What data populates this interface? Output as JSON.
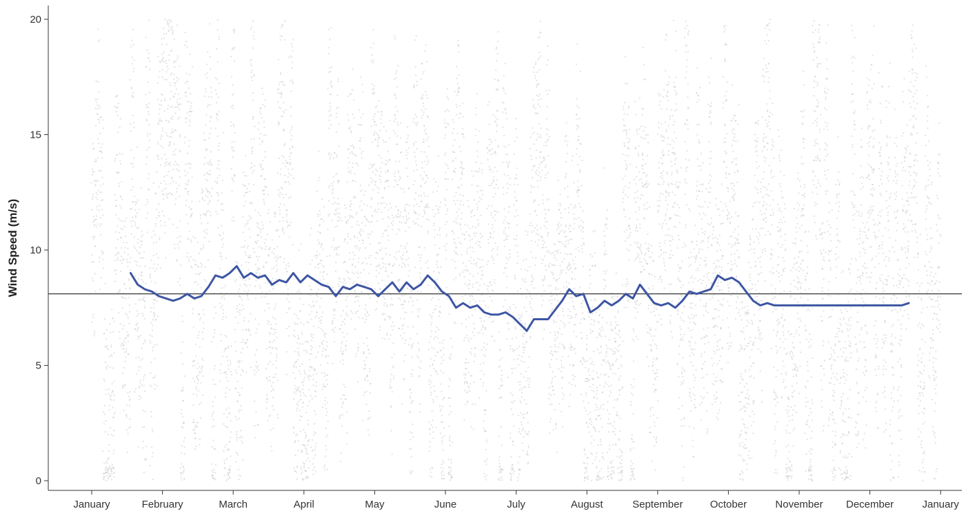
{
  "chart_data": {
    "type": "scatter",
    "title": "",
    "xlabel": "",
    "ylabel": "Wind Speed (m/s)",
    "ylim": [
      -0.8,
      20.5
    ],
    "y_ticks": [
      0,
      5,
      10,
      15,
      20
    ],
    "x_ticks": [
      "January",
      "February",
      "March",
      "April",
      "May",
      "June",
      "July",
      "August",
      "September",
      "October",
      "November",
      "December",
      "January"
    ],
    "grid": false,
    "legend": "none",
    "reference_line": {
      "y": 8.1
    },
    "points": {
      "description_free": true,
      "color": "#c8cacc",
      "count": 8760,
      "range": [
        0,
        20
      ]
    },
    "rolling_mean": {
      "color": "#3d55a3",
      "x_month": [
        0.55,
        0.65,
        0.75,
        0.85,
        0.95,
        1.05,
        1.15,
        1.25,
        1.35,
        1.45,
        1.55,
        1.65,
        1.75,
        1.85,
        1.95,
        2.05,
        2.15,
        2.25,
        2.35,
        2.45,
        2.55,
        2.65,
        2.75,
        2.85,
        2.95,
        3.05,
        3.15,
        3.25,
        3.35,
        3.45,
        3.55,
        3.65,
        3.75,
        3.85,
        3.95,
        4.05,
        4.15,
        4.25,
        4.35,
        4.45,
        4.55,
        4.65,
        4.75,
        4.85,
        4.95,
        5.05,
        5.15,
        5.25,
        5.35,
        5.45,
        5.55,
        5.65,
        5.75,
        5.85,
        5.95,
        6.05,
        6.15,
        6.25,
        6.35,
        6.45,
        6.55,
        6.65,
        6.75,
        6.85,
        6.95,
        7.05,
        7.15,
        7.25,
        7.35,
        7.45,
        7.55,
        7.65,
        7.75,
        7.85,
        7.95,
        8.05,
        8.15,
        8.25,
        8.35,
        8.45,
        8.55,
        8.65,
        8.75,
        8.85,
        8.95,
        9.05,
        9.15,
        9.25,
        9.35,
        9.45,
        9.55,
        9.65,
        9.75,
        9.85,
        9.95,
        10.05,
        10.15,
        10.25,
        10.35,
        10.45,
        10.55,
        10.65,
        10.75,
        10.85,
        10.95,
        11.05,
        11.15,
        11.25,
        11.35,
        11.45,
        11.55
      ],
      "y": [
        9.0,
        8.5,
        8.3,
        8.2,
        8.0,
        7.9,
        7.8,
        7.9,
        8.1,
        7.9,
        8.0,
        8.4,
        8.9,
        8.8,
        9.0,
        9.3,
        8.8,
        9.0,
        8.8,
        8.9,
        8.5,
        8.7,
        8.6,
        9.0,
        8.6,
        8.9,
        8.7,
        8.5,
        8.4,
        8.0,
        8.4,
        8.3,
        8.5,
        8.4,
        8.3,
        8.0,
        8.3,
        8.6,
        8.2,
        8.6,
        8.3,
        8.5,
        8.9,
        8.6,
        8.2,
        8.0,
        7.5,
        7.7,
        7.5,
        7.6,
        7.3,
        7.2,
        7.2,
        7.3,
        7.1,
        6.8,
        6.5,
        7.0,
        7.0,
        7.0,
        7.4,
        7.8,
        8.3,
        8.0,
        8.1,
        7.3,
        7.5,
        7.8,
        7.6,
        7.8,
        8.1,
        7.9,
        8.5,
        8.1,
        7.7,
        7.6,
        7.7,
        7.5,
        7.8,
        8.2,
        8.1,
        8.2,
        8.3,
        8.9,
        8.7,
        8.8,
        8.6,
        8.2,
        7.8,
        7.6,
        7.7,
        7.6,
        7.6,
        7.6,
        7.6,
        7.6,
        7.6,
        7.6,
        7.6,
        7.6,
        7.6,
        7.6,
        7.6,
        7.6,
        7.6,
        7.6,
        7.6,
        7.6,
        7.6,
        7.6,
        7.7
      ]
    }
  }
}
